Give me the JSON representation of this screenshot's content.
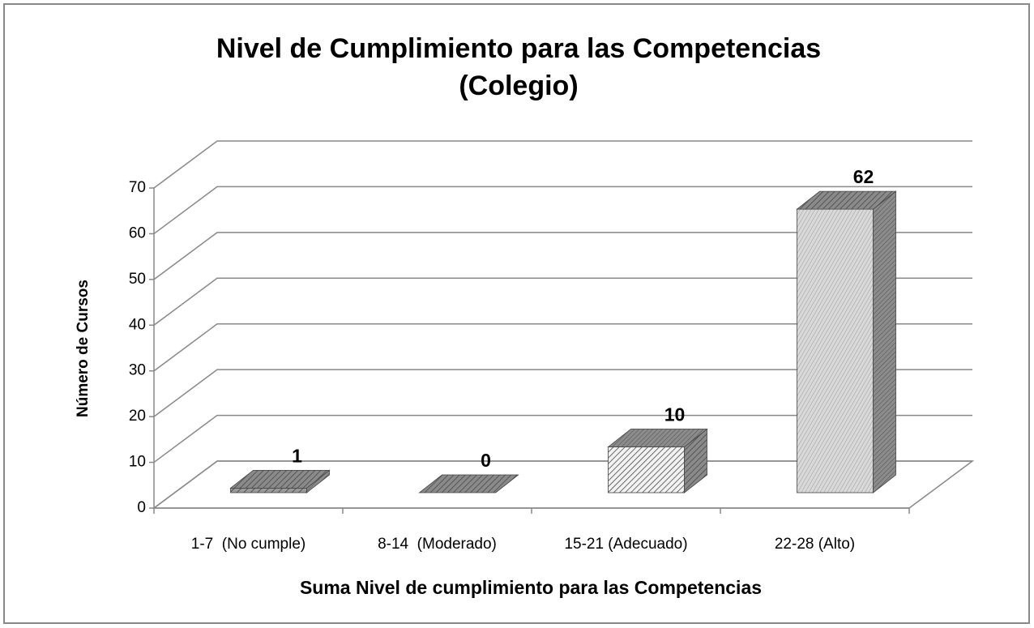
{
  "chart_data": {
    "type": "bar3d",
    "title": "Nivel de Cumplimiento para las Competencias",
    "subtitle": "(Colegio)",
    "x_label": "Suma Nivel de cumplimiento para las Competencias",
    "y_label": "Número de Cursos",
    "categories": [
      "1-7  (No cumple)",
      "8-14  (Moderado)",
      "15-21 (Adecuado)",
      "22-28 (Alto)"
    ],
    "values": [
      1,
      0,
      10,
      62
    ],
    "ylim": [
      0,
      70
    ],
    "yticks": [
      0,
      10,
      20,
      30,
      40,
      50,
      60,
      70
    ],
    "grid": true
  }
}
